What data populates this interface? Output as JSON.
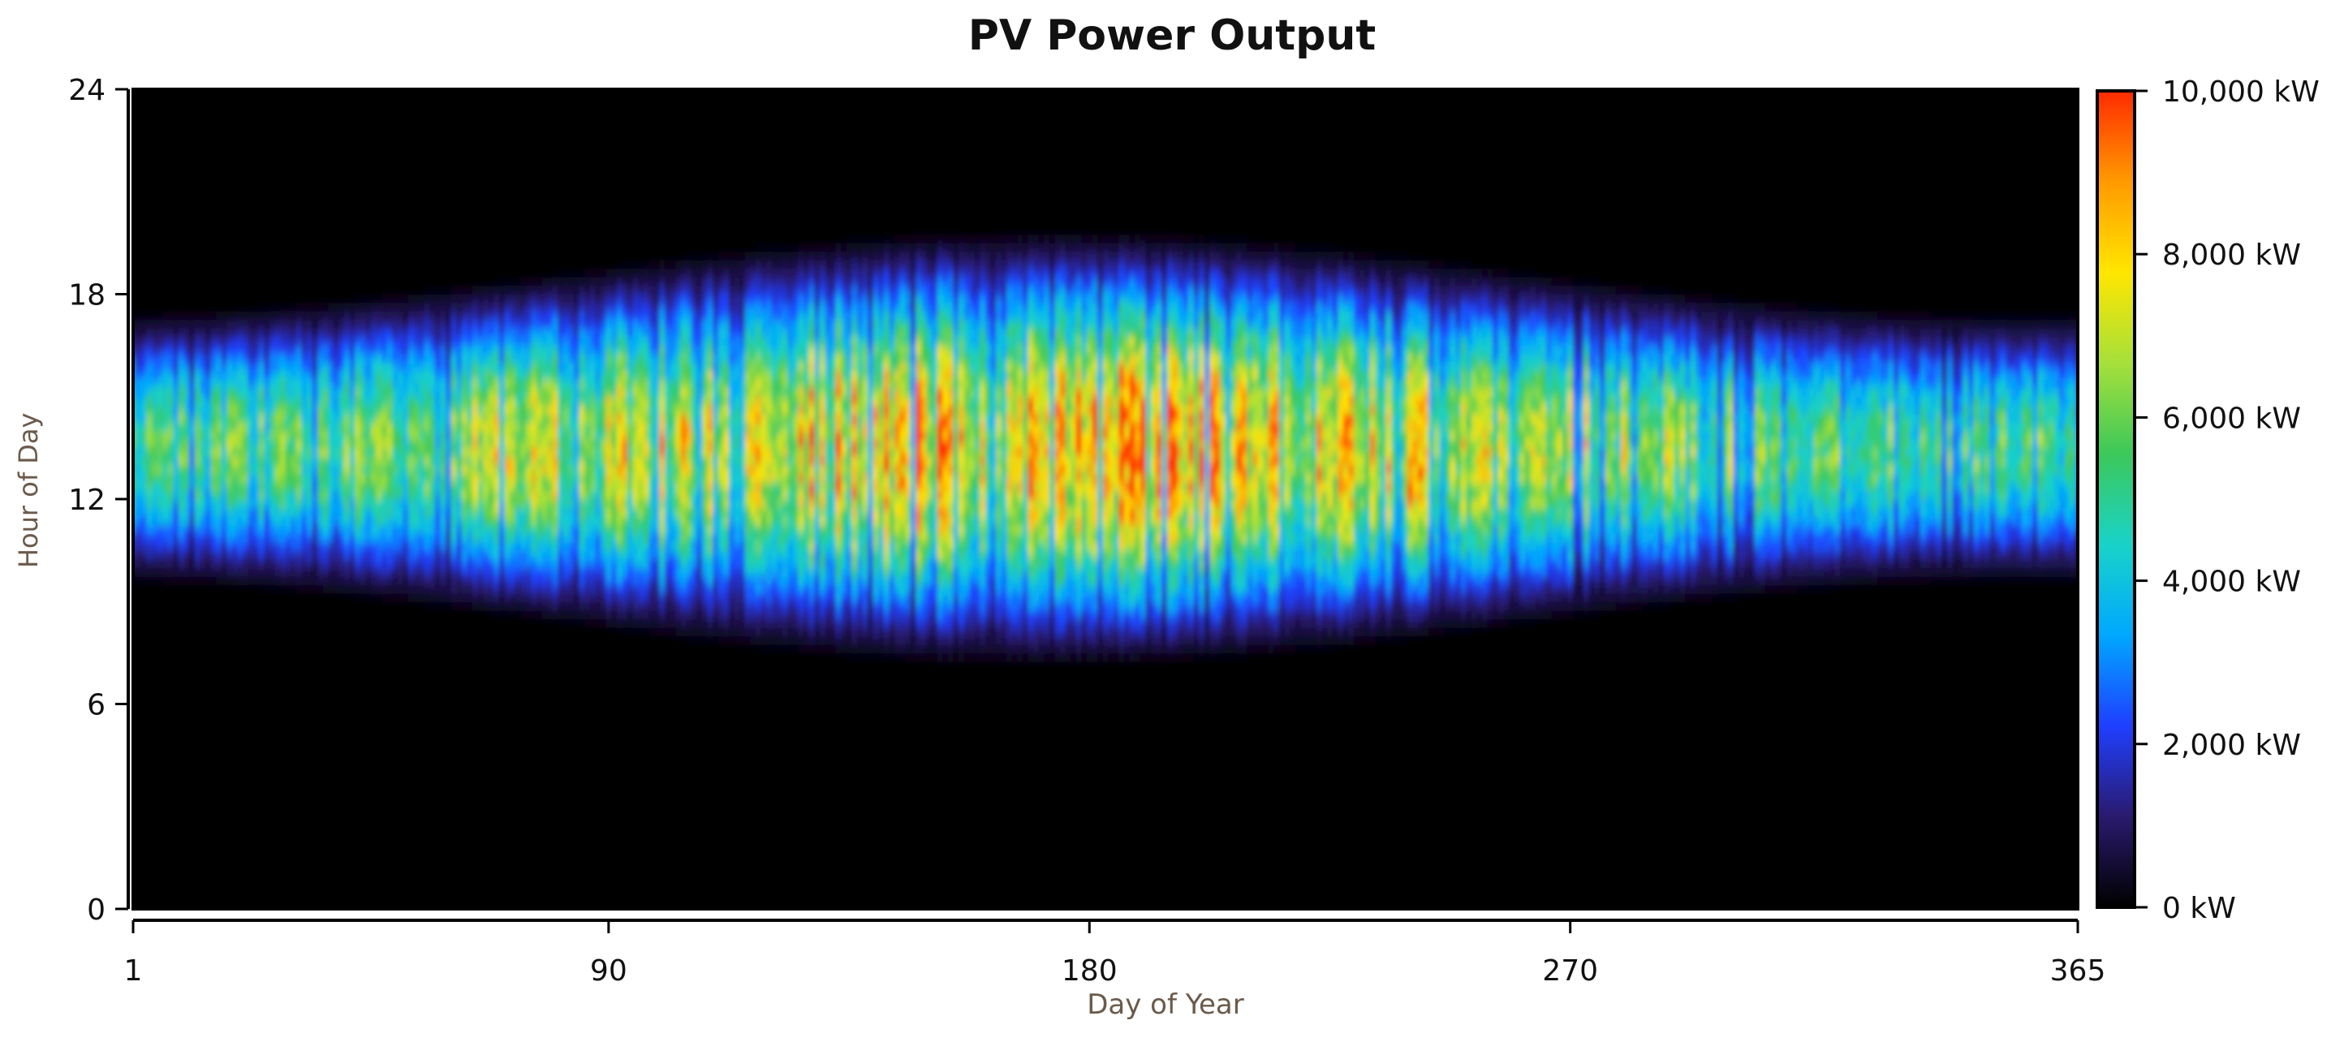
{
  "chart_data": {
    "type": "heatmap",
    "title": "PV Power Output",
    "xlabel": "Day of Year",
    "ylabel": "Hour of Day",
    "x_ticks": [
      "1",
      "90",
      "180",
      "270",
      "365"
    ],
    "x_tick_values": [
      1,
      90,
      180,
      270,
      365
    ],
    "xlim": [
      1,
      365
    ],
    "y_ticks": [
      "0",
      "6",
      "12",
      "18",
      "24"
    ],
    "y_tick_values": [
      0,
      6,
      12,
      18,
      24
    ],
    "ylim": [
      0,
      24
    ],
    "colorbar": {
      "labels": [
        "0 kW",
        "2,000 kW",
        "4,000 kW",
        "6,000 kW",
        "8,000 kW",
        "10,000 kW"
      ],
      "values": [
        0,
        2000,
        4000,
        6000,
        8000,
        10000
      ],
      "min": 0,
      "max": 10000,
      "colors": [
        "#000000",
        "#2a1a6e",
        "#1f3fff",
        "#00a8ff",
        "#19d3c8",
        "#3cc85a",
        "#a6e03a",
        "#ffe600",
        "#ff9a00",
        "#ff2a00"
      ]
    },
    "background_color": "#000000",
    "approx_daylight_start_hour": {
      "winter": 9,
      "summer": 7
    },
    "approx_daylight_end_hour": {
      "winter": 18.5,
      "summer": 20
    },
    "approx_peak_hour": 13.5,
    "approx_peak_output_kw": 9000
  }
}
